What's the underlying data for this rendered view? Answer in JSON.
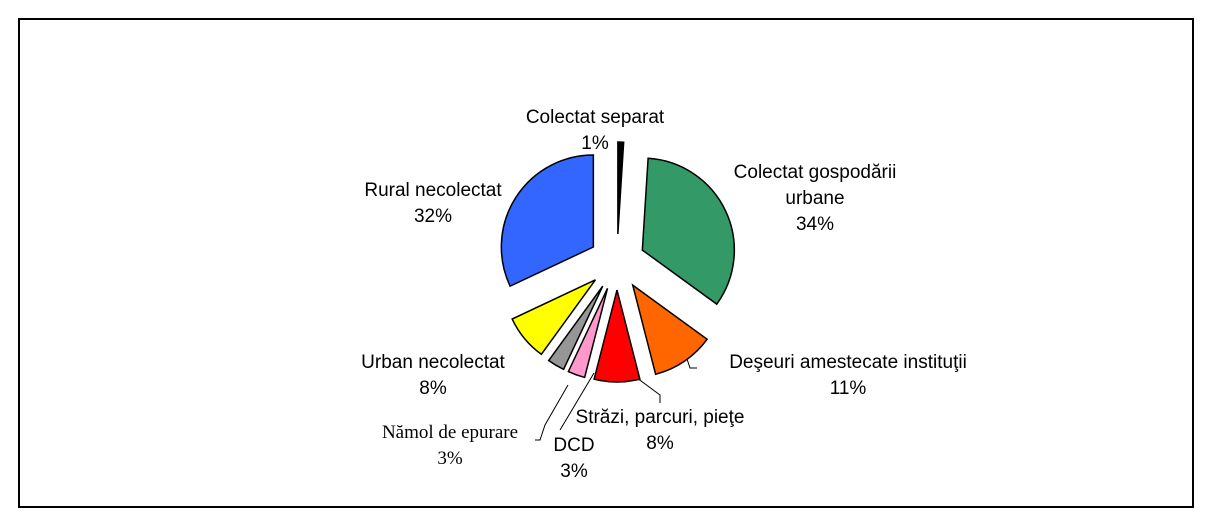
{
  "chart_data": {
    "type": "pie",
    "categories": [
      "Colectat separat",
      "Colectat gospodării urbane",
      "Deşeuri amestecate instituţii",
      "Străzi, parcuri, pieţe",
      "DCD",
      "Nămol de epurare",
      "Urban necolectat",
      "Rural necolectat"
    ],
    "values": [
      1,
      34,
      11,
      8,
      3,
      3,
      8,
      32
    ],
    "value_labels": [
      "1%",
      "34%",
      "11%",
      "8%",
      "3%",
      "3%",
      "8%",
      "32%"
    ],
    "colors": [
      "#000000",
      "#339966",
      "#ff6600",
      "#ff0000",
      "#ff99cc",
      "#969696",
      "#ffff00",
      "#3366ff"
    ]
  }
}
